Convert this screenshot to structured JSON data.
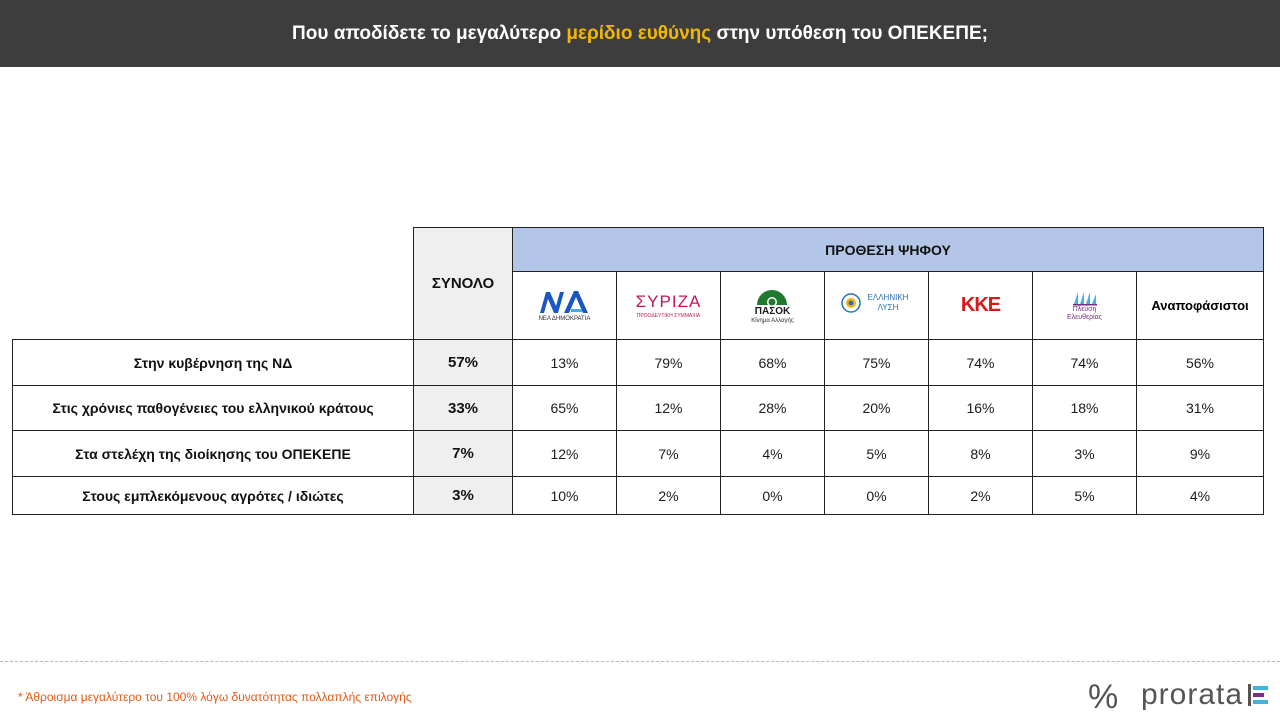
{
  "header": {
    "title_before": "Που αποδίδετε το μεγαλύτερο",
    "title_highlight": "μερίδιο ευθύνης",
    "title_after": "στην υπόθεση του ΟΠΕΚΕΠΕ;",
    "highlight_color": "#f2b705"
  },
  "chart_data": {
    "type": "table",
    "total_header": "ΣΥΝΟΛΟ",
    "intent_header": "ΠΡΟΘΕΣΗ ΨΗΦΟΥ",
    "columns": [
      {
        "logo_text": "ΝΔ",
        "logo_caption": "ΝΕΑ ΔΗΜΟΚΡΑΤΙΑ",
        "icon": "nd-logo-icon",
        "color": "#1a56c4"
      },
      {
        "logo_text": "ΣΥΡΙΖΑ",
        "logo_caption": "ΠΡΟΟΔΕΥΤΙΚΗ ΣΥΜΜΑΧΙΑ",
        "icon": "syriza-logo-icon",
        "color": "#c2185b"
      },
      {
        "logo_text": "ΠΑΣΟΚ",
        "logo_caption": "Κίνημα Αλλαγής",
        "icon": "pasok-logo-icon",
        "color": "#1f7a2e"
      },
      {
        "logo_text": "ΕΛΛΗΝΙΚΗ ΛΥΣΗ",
        "logo_caption": "",
        "icon": "elliniki-lysi-logo-icon",
        "color": "#2a6fb5"
      },
      {
        "logo_text": "ΚΚΕ",
        "logo_caption": "",
        "icon": "kke-logo-icon",
        "color": "#d7191c"
      },
      {
        "logo_text": "Πλεύση Ελευθερίας",
        "logo_caption": "",
        "icon": "plefsi-logo-icon",
        "color": "#7b2c86"
      },
      {
        "logo_text": "Αναποφάσιστοι",
        "logo_caption": "",
        "icon": "",
        "color": "#000000"
      }
    ],
    "rows": [
      {
        "label": "Στην κυβέρνηση της ΝΔ",
        "total": "57%",
        "values": [
          "13%",
          "79%",
          "68%",
          "75%",
          "74%",
          "74%",
          "56%"
        ]
      },
      {
        "label": "Στις χρόνιες παθογένειες του ελληνικού κράτους",
        "total": "33%",
        "values": [
          "65%",
          "12%",
          "28%",
          "20%",
          "16%",
          "18%",
          "31%"
        ]
      },
      {
        "label": "Στα στελέχη της διοίκησης του ΟΠΕΚΕΠΕ",
        "total": "7%",
        "values": [
          "12%",
          "7%",
          "4%",
          "5%",
          "8%",
          "3%",
          "9%"
        ]
      },
      {
        "label": "Στους εμπλεκόμενους αγρότες / ιδιώτες",
        "total": "3%",
        "values": [
          "10%",
          "2%",
          "0%",
          "0%",
          "2%",
          "5%",
          "4%"
        ]
      }
    ]
  },
  "footer": {
    "footnote": "* Άθροισμα μεγαλύτερο του 100% λόγω δυνατότητας πολλαπλής επιλογής",
    "brand_symbol": "%",
    "brand_name": "prorata"
  },
  "colors": {
    "header_bg": "#3d3d3d",
    "intent_bg": "#b4c6e7",
    "total_bg": "#efefef",
    "footnote": "#e05a14"
  }
}
